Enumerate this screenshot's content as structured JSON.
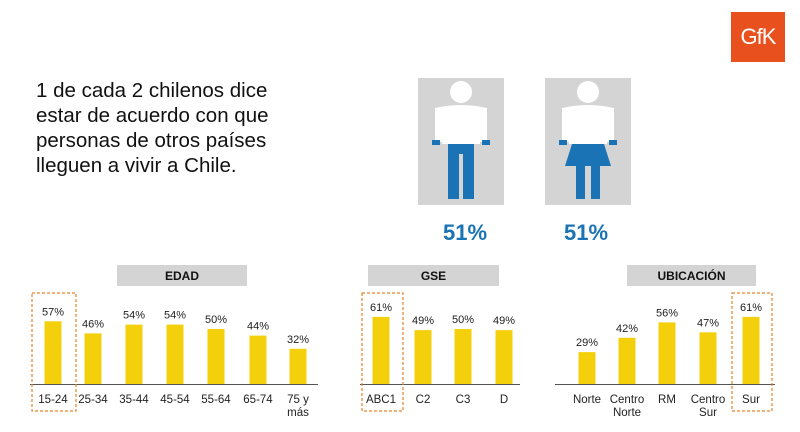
{
  "logo": "GfK",
  "headline": "1 de cada 2 chilenos dice estar de acuerdo con que personas de otros países lleguen a vivir a Chile.",
  "gender": {
    "male": {
      "icon": "man-icon",
      "value": "51%"
    },
    "female": {
      "icon": "woman-icon",
      "value": "51%"
    }
  },
  "colors": {
    "bar": "#f4cf0c",
    "highlight_box": "#e8832a",
    "accent_blue": "#1a73b5",
    "header_gray": "#d4d4d4",
    "logo": "#e8501e"
  },
  "chart_data": [
    {
      "type": "bar",
      "title": "EDAD",
      "categories": [
        "15-24",
        "25-34",
        "35-44",
        "45-54",
        "55-64",
        "65-74",
        "75 y más"
      ],
      "values": [
        57,
        46,
        54,
        54,
        50,
        44,
        32
      ],
      "labels": [
        "57%",
        "46%",
        "54%",
        "54%",
        "50%",
        "44%",
        "32%"
      ],
      "highlight": [
        "15-24"
      ]
    },
    {
      "type": "bar",
      "title": "GSE",
      "categories": [
        "ABC1",
        "C2",
        "C3",
        "D"
      ],
      "values": [
        61,
        49,
        50,
        49
      ],
      "labels": [
        "61%",
        "49%",
        "50%",
        "49%"
      ],
      "highlight": [
        "ABC1"
      ]
    },
    {
      "type": "bar",
      "title": "UBICACIÓN",
      "categories": [
        "Norte",
        "Centro Norte",
        "RM",
        "Centro Sur",
        "Sur"
      ],
      "values": [
        29,
        42,
        56,
        47,
        61
      ],
      "labels": [
        "29%",
        "42%",
        "56%",
        "47%",
        "61%"
      ],
      "highlight": [
        "Sur"
      ]
    }
  ]
}
